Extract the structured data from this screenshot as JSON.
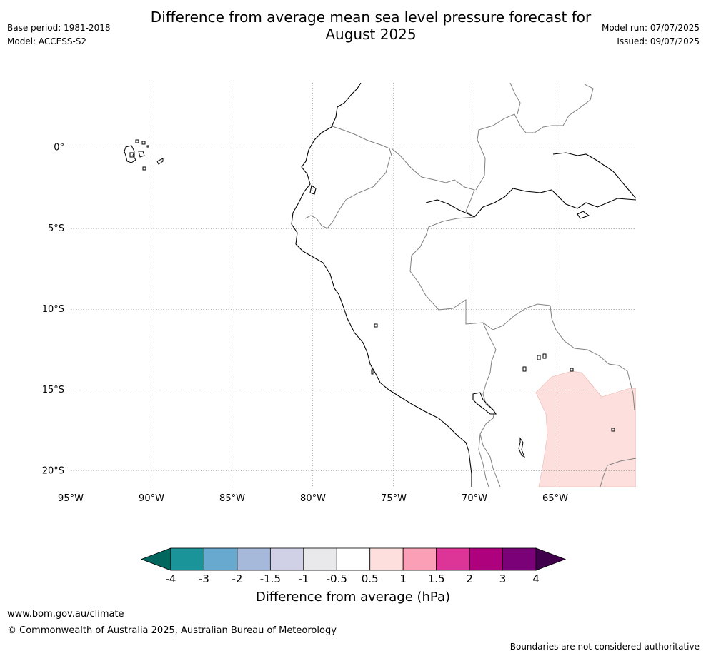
{
  "title": "Difference from average mean sea level pressure forecast for August 2025",
  "meta_left": {
    "base_period": "Base period: 1981-2018",
    "model": "Model: ACCESS-S2"
  },
  "meta_right": {
    "model_run": "Model run: 07/07/2025",
    "issued": "Issued: 09/07/2025"
  },
  "map": {
    "lon_ticks": [
      "95°W",
      "90°W",
      "85°W",
      "80°W",
      "75°W",
      "70°W",
      "65°W"
    ],
    "lat_ticks": [
      "0°",
      "5°S",
      "10°S",
      "15°S",
      "20°S"
    ],
    "lon_range": [
      -95,
      -60
    ],
    "lat_range": [
      -21,
      4
    ],
    "anomaly_region_value": "0.5 to 1 hPa",
    "colors": {
      "coast": "#000000",
      "border": "#808080",
      "grid": "#999999",
      "anomaly_fill": "#fde0dd"
    }
  },
  "colorbar": {
    "title": "Difference from average (hPa)",
    "ticks": [
      "-4",
      "-3",
      "-2",
      "-1.5",
      "-1",
      "-0.5",
      "0.5",
      "1",
      "1.5",
      "2",
      "3",
      "4"
    ],
    "under_color": "#00665e",
    "over_color": "#40004b",
    "bin_colors": [
      "#1a9399",
      "#67a9cf",
      "#a6b9db",
      "#d0d1e6",
      "#e9e9ec",
      "#ffffff",
      "#fde0dd",
      "#fa9fb5",
      "#dd3497",
      "#ae017e",
      "#7a0177"
    ]
  },
  "footer": {
    "url": "www.bom.gov.au/climate",
    "copyright": "© Commonwealth of Australia 2025, Australian Bureau of Meteorology",
    "note": "Boundaries are not considered authoritative"
  }
}
